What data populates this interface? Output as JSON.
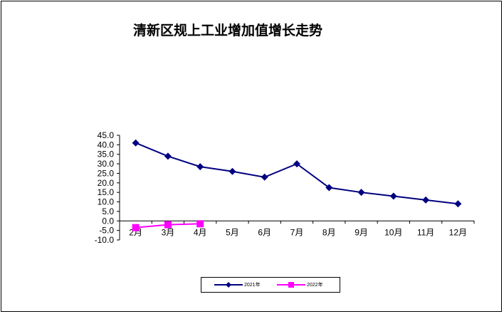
{
  "chart_data": {
    "type": "line",
    "title": "清新区规上工业增加值增长走势",
    "categories": [
      "2月",
      "3月",
      "4月",
      "5月",
      "6月",
      "7月",
      "8月",
      "9月",
      "10月",
      "11月",
      "12月"
    ],
    "series": [
      {
        "name": "2021年",
        "color": "#000080",
        "marker": "diamond",
        "values": [
          41.0,
          34.0,
          28.5,
          26.0,
          23.0,
          30.0,
          17.5,
          15.0,
          13.0,
          11.0,
          9.0
        ]
      },
      {
        "name": "2022年",
        "color": "#ff00ff",
        "marker": "square",
        "values": [
          -3.5,
          -2.0,
          -1.5,
          null,
          null,
          null,
          null,
          null,
          null,
          null,
          null
        ]
      }
    ],
    "ylim": [
      -10,
      45
    ],
    "ytick_step": 5,
    "ytick_labels": [
      "-10.0",
      "-5.0",
      "0.0",
      "5.0",
      "10.0",
      "15.0",
      "20.0",
      "25.0",
      "30.0",
      "35.0",
      "40.0",
      "45.0"
    ],
    "grid": false,
    "legend_position": "bottom-center"
  }
}
